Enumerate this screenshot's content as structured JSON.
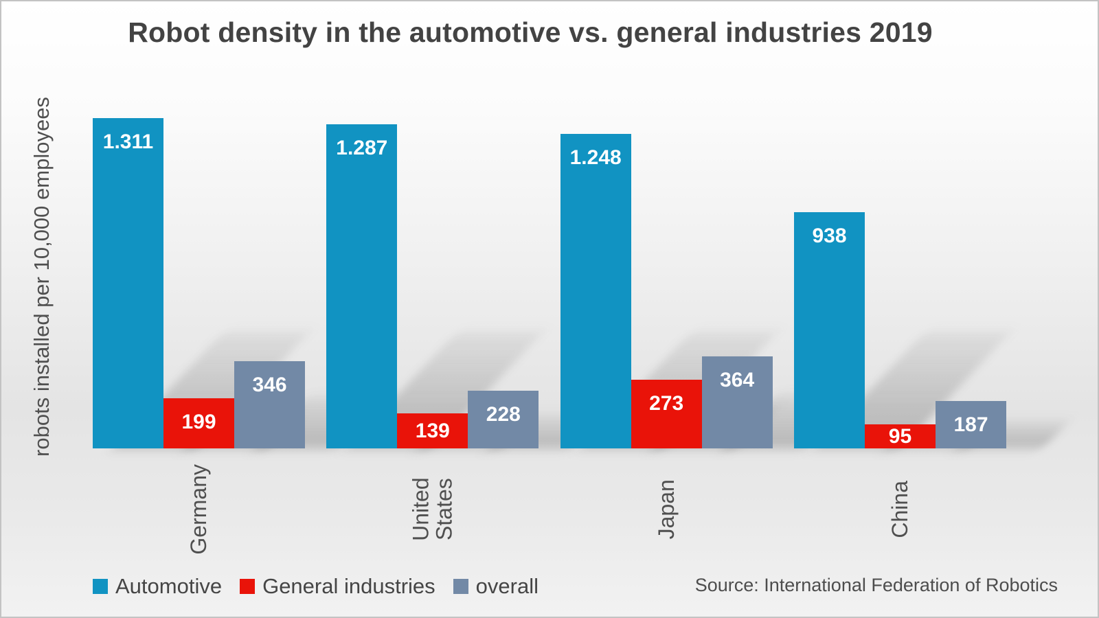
{
  "chart_data": {
    "type": "bar",
    "title": "Robot density in the automotive vs. general industries 2019",
    "ylabel": "robots installed per 10,000 employees",
    "xlabel": "",
    "categories": [
      "Germany",
      "United\nStates",
      "Japan",
      "China"
    ],
    "series": [
      {
        "name": "Automotive",
        "color": "#1193c2",
        "values": [
          1311,
          1287,
          1248,
          938
        ],
        "labels": [
          "1.311",
          "1.287",
          "1.248",
          "938"
        ]
      },
      {
        "name": "General industries",
        "color": "#e91309",
        "values": [
          199,
          139,
          273,
          95
        ],
        "labels": [
          "199",
          "139",
          "273",
          "95"
        ]
      },
      {
        "name": "overall",
        "color": "#7289a6",
        "values": [
          346,
          228,
          364,
          187
        ],
        "labels": [
          "346",
          "228",
          "364",
          "187"
        ]
      }
    ],
    "legend_position": "bottom",
    "grid": false,
    "ylim": [
      0,
      1311
    ],
    "value_label_color": "#ffffff",
    "axis_text_color": "#4f4f4f",
    "title_color": "#434343",
    "source": "Source: International Federation of Robotics"
  }
}
